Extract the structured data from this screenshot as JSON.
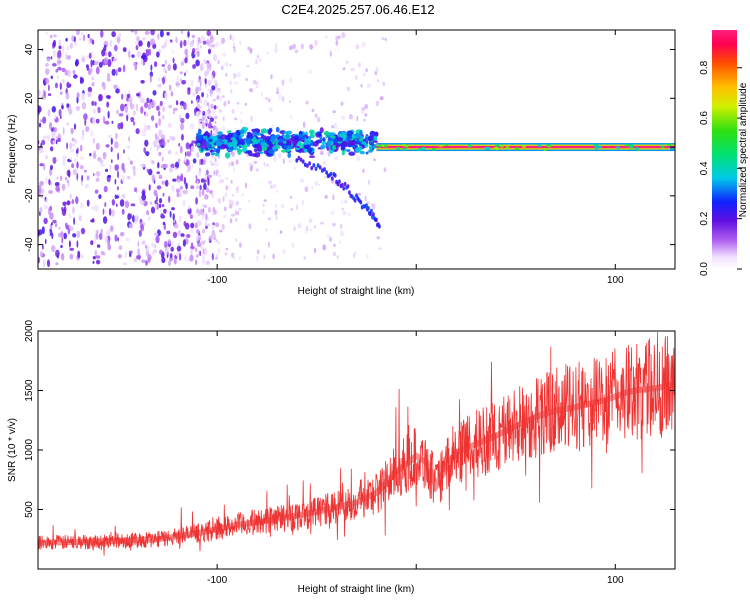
{
  "title": "C2E4.2025.257.06.46.E12",
  "chart_data": [
    {
      "type": "heatmap",
      "xlabel": "Height of straight line (km)",
      "ylabel": "Frequency (Hz)",
      "xlim": [
        -190,
        130
      ],
      "ylim": [
        -50,
        48
      ],
      "xticks": [
        -100,
        0,
        100
      ],
      "xtick_labels": [
        "-100",
        "",
        "100"
      ],
      "yticks": [
        -40,
        -20,
        0,
        20,
        40
      ],
      "ytick_labels": [
        "-40",
        "-20",
        "0",
        "20",
        "40"
      ],
      "colorbar": {
        "label": "Normalized spectral amplitude",
        "range": [
          0,
          0.95
        ],
        "ticks": [
          0.0,
          0.2,
          0.4,
          0.6,
          0.8
        ],
        "tick_labels": [
          "0.0",
          "0.2",
          "0.4",
          "0.6",
          "0.8"
        ]
      },
      "features": [
        {
          "segment": "noise",
          "x_range": [
            -190,
            -110
          ],
          "freq_spread_hz": 48,
          "amplitude": 0.05
        },
        {
          "segment": "spread",
          "x_range": [
            -110,
            -20
          ],
          "freq_center_hz": 2,
          "freq_spread_hz": 6,
          "amplitude": 0.2
        },
        {
          "segment": "descending branch",
          "x": [
            -60,
            -45,
            -35,
            -25,
            -18
          ],
          "freq_hz": [
            -5,
            -10,
            -17,
            -25,
            -32
          ],
          "amplitude": 0.08
        },
        {
          "segment": "carrier",
          "x_range": [
            -20,
            130
          ],
          "freq_hz": 0,
          "amplitude": 0.95
        }
      ]
    },
    {
      "type": "line",
      "xlabel": "Height of straight line (km)",
      "ylabel": "SNR (10 * v/v)",
      "xlim": [
        -190,
        130
      ],
      "ylim": [
        0,
        2000
      ],
      "xticks": [
        -100,
        0,
        100
      ],
      "xtick_labels": [
        "-100",
        "",
        "100"
      ],
      "yticks": [
        500,
        1000,
        1500,
        2000
      ],
      "ytick_labels": [
        "500",
        "1000",
        "1500",
        "2000"
      ],
      "color": "#ee3333",
      "series": [
        {
          "x": [
            -190,
            -160,
            -130,
            -110,
            -90,
            -70,
            -50,
            -40,
            -30,
            -20,
            -10,
            -5,
            0,
            5,
            10,
            15,
            20,
            30,
            40,
            50,
            60,
            70,
            80,
            90,
            95,
            100,
            105,
            110,
            120,
            130
          ],
          "values": [
            220,
            230,
            250,
            300,
            370,
            420,
            480,
            520,
            560,
            640,
            820,
            880,
            950,
            900,
            700,
            850,
            980,
            1050,
            1120,
            1200,
            1280,
            1330,
            1360,
            1400,
            1420,
            1450,
            1480,
            1500,
            1520,
            1550
          ]
        }
      ]
    }
  ]
}
